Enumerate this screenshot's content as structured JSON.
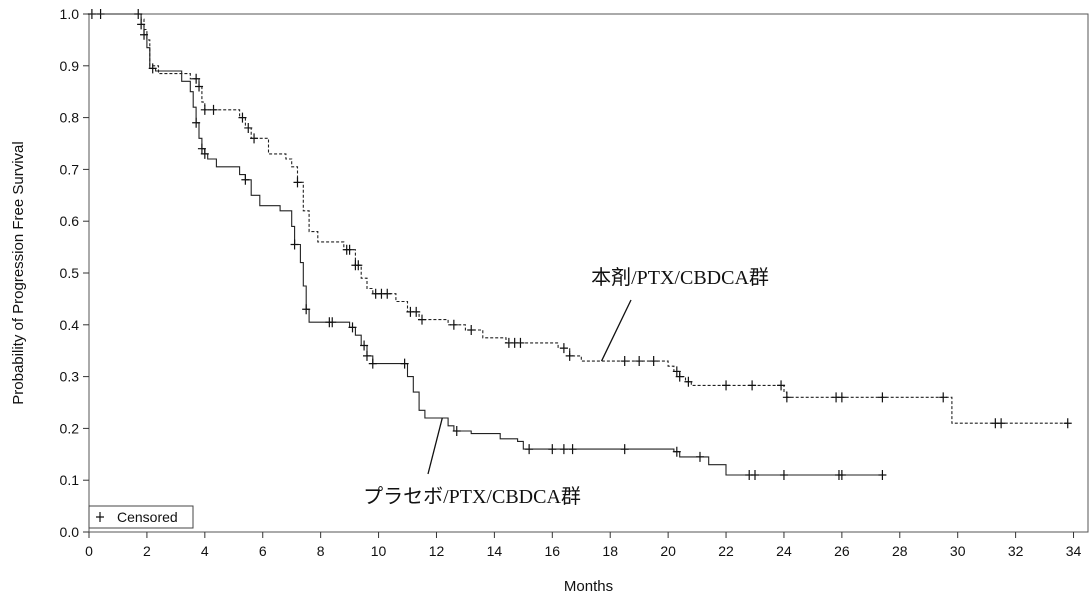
{
  "chart_data": {
    "type": "line",
    "title": "",
    "xlabel": "Months",
    "ylabel": "Probability of Progression Free Survival",
    "xlim": [
      0,
      34.5
    ],
    "ylim": [
      0,
      1.0
    ],
    "x_ticks": [
      "0",
      "2",
      "4",
      "6",
      "8",
      "10",
      "12",
      "14",
      "16",
      "18",
      "20",
      "22",
      "24",
      "26",
      "28",
      "30",
      "32",
      "34"
    ],
    "y_ticks": [
      "0.0",
      "0.1",
      "0.2",
      "0.3",
      "0.4",
      "0.5",
      "0.6",
      "0.7",
      "0.8",
      "0.9",
      "1.0"
    ],
    "grid": false,
    "legend": {
      "position": "bottom-left",
      "entries": [
        "Censored"
      ]
    },
    "series": [
      {
        "style": "dashed",
        "label": "本剤/PTX/CBDCA群",
        "steps": [
          [
            0,
            1.0
          ],
          [
            1.8,
            0.99
          ],
          [
            1.9,
            0.97
          ],
          [
            2.0,
            0.95
          ],
          [
            2.1,
            0.9
          ],
          [
            2.4,
            0.885
          ],
          [
            3.5,
            0.875
          ],
          [
            3.8,
            0.86
          ],
          [
            3.9,
            0.83
          ],
          [
            4.0,
            0.815
          ],
          [
            5.2,
            0.8
          ],
          [
            5.4,
            0.78
          ],
          [
            5.6,
            0.76
          ],
          [
            6.2,
            0.73
          ],
          [
            6.8,
            0.72
          ],
          [
            7.0,
            0.705
          ],
          [
            7.2,
            0.675
          ],
          [
            7.4,
            0.62
          ],
          [
            7.6,
            0.58
          ],
          [
            7.9,
            0.56
          ],
          [
            8.8,
            0.545
          ],
          [
            9.2,
            0.515
          ],
          [
            9.4,
            0.49
          ],
          [
            9.6,
            0.47
          ],
          [
            9.8,
            0.46
          ],
          [
            10.6,
            0.445
          ],
          [
            11.0,
            0.425
          ],
          [
            11.4,
            0.41
          ],
          [
            12.4,
            0.4
          ],
          [
            13.0,
            0.39
          ],
          [
            13.6,
            0.375
          ],
          [
            14.4,
            0.365
          ],
          [
            16.2,
            0.355
          ],
          [
            16.6,
            0.34
          ],
          [
            17.0,
            0.33
          ],
          [
            20.0,
            0.32
          ],
          [
            20.2,
            0.31
          ],
          [
            20.4,
            0.3
          ],
          [
            20.6,
            0.29
          ],
          [
            20.8,
            0.283
          ],
          [
            24.0,
            0.27
          ],
          [
            24.1,
            0.26
          ],
          [
            29.5,
            0.26
          ],
          [
            29.8,
            0.21
          ],
          [
            33.8,
            0.21
          ]
        ],
        "censored_x": [
          0.1,
          0.4,
          3.7,
          3.8,
          4.0,
          4.3,
          5.3,
          5.5,
          5.7,
          7.2,
          8.9,
          9.0,
          9.2,
          9.3,
          9.9,
          10.1,
          10.3,
          11.1,
          11.3,
          11.5,
          12.6,
          13.2,
          14.5,
          14.7,
          14.9,
          16.4,
          16.6,
          18.5,
          19.0,
          19.5,
          20.3,
          20.4,
          20.7,
          22.0,
          22.9,
          23.9,
          24.1,
          25.8,
          26.0,
          27.4,
          29.5,
          31.3,
          31.5,
          33.8
        ]
      },
      {
        "style": "solid",
        "label": "プラセボ/PTX/CBDCA群",
        "steps": [
          [
            0,
            1.0
          ],
          [
            1.8,
            0.98
          ],
          [
            1.9,
            0.96
          ],
          [
            2.0,
            0.935
          ],
          [
            2.1,
            0.895
          ],
          [
            2.3,
            0.89
          ],
          [
            3.2,
            0.87
          ],
          [
            3.5,
            0.85
          ],
          [
            3.6,
            0.82
          ],
          [
            3.7,
            0.79
          ],
          [
            3.8,
            0.76
          ],
          [
            3.9,
            0.74
          ],
          [
            4.0,
            0.73
          ],
          [
            4.1,
            0.72
          ],
          [
            4.4,
            0.705
          ],
          [
            5.2,
            0.69
          ],
          [
            5.4,
            0.68
          ],
          [
            5.6,
            0.65
          ],
          [
            5.9,
            0.63
          ],
          [
            6.6,
            0.62
          ],
          [
            7.0,
            0.59
          ],
          [
            7.1,
            0.555
          ],
          [
            7.3,
            0.52
          ],
          [
            7.4,
            0.475
          ],
          [
            7.5,
            0.43
          ],
          [
            7.6,
            0.405
          ],
          [
            9.0,
            0.395
          ],
          [
            9.2,
            0.38
          ],
          [
            9.4,
            0.36
          ],
          [
            9.6,
            0.34
          ],
          [
            9.8,
            0.325
          ],
          [
            11.0,
            0.3
          ],
          [
            11.2,
            0.27
          ],
          [
            11.4,
            0.235
          ],
          [
            11.6,
            0.22
          ],
          [
            12.4,
            0.205
          ],
          [
            12.6,
            0.195
          ],
          [
            13.2,
            0.19
          ],
          [
            14.2,
            0.18
          ],
          [
            14.8,
            0.175
          ],
          [
            15.0,
            0.16
          ],
          [
            20.2,
            0.155
          ],
          [
            20.4,
            0.145
          ],
          [
            21.4,
            0.13
          ],
          [
            22.0,
            0.11
          ],
          [
            27.4,
            0.11
          ]
        ],
        "censored_x": [
          1.7,
          1.8,
          1.9,
          2.2,
          3.7,
          3.9,
          4.0,
          5.4,
          7.1,
          7.5,
          8.3,
          8.4,
          9.1,
          9.5,
          9.6,
          9.8,
          10.9,
          12.7,
          15.2,
          16.0,
          16.4,
          16.7,
          18.5,
          20.3,
          21.1,
          22.8,
          23.0,
          24.0,
          25.9,
          26.0,
          27.4
        ]
      }
    ],
    "annotations": [
      {
        "text": "本剤/PTX/CBDCA群",
        "points_to": [
          17.7,
          0.33
        ]
      },
      {
        "text": "プラセボ/PTX/CBDCA群",
        "points_to": [
          12.2,
          0.22
        ]
      }
    ]
  }
}
